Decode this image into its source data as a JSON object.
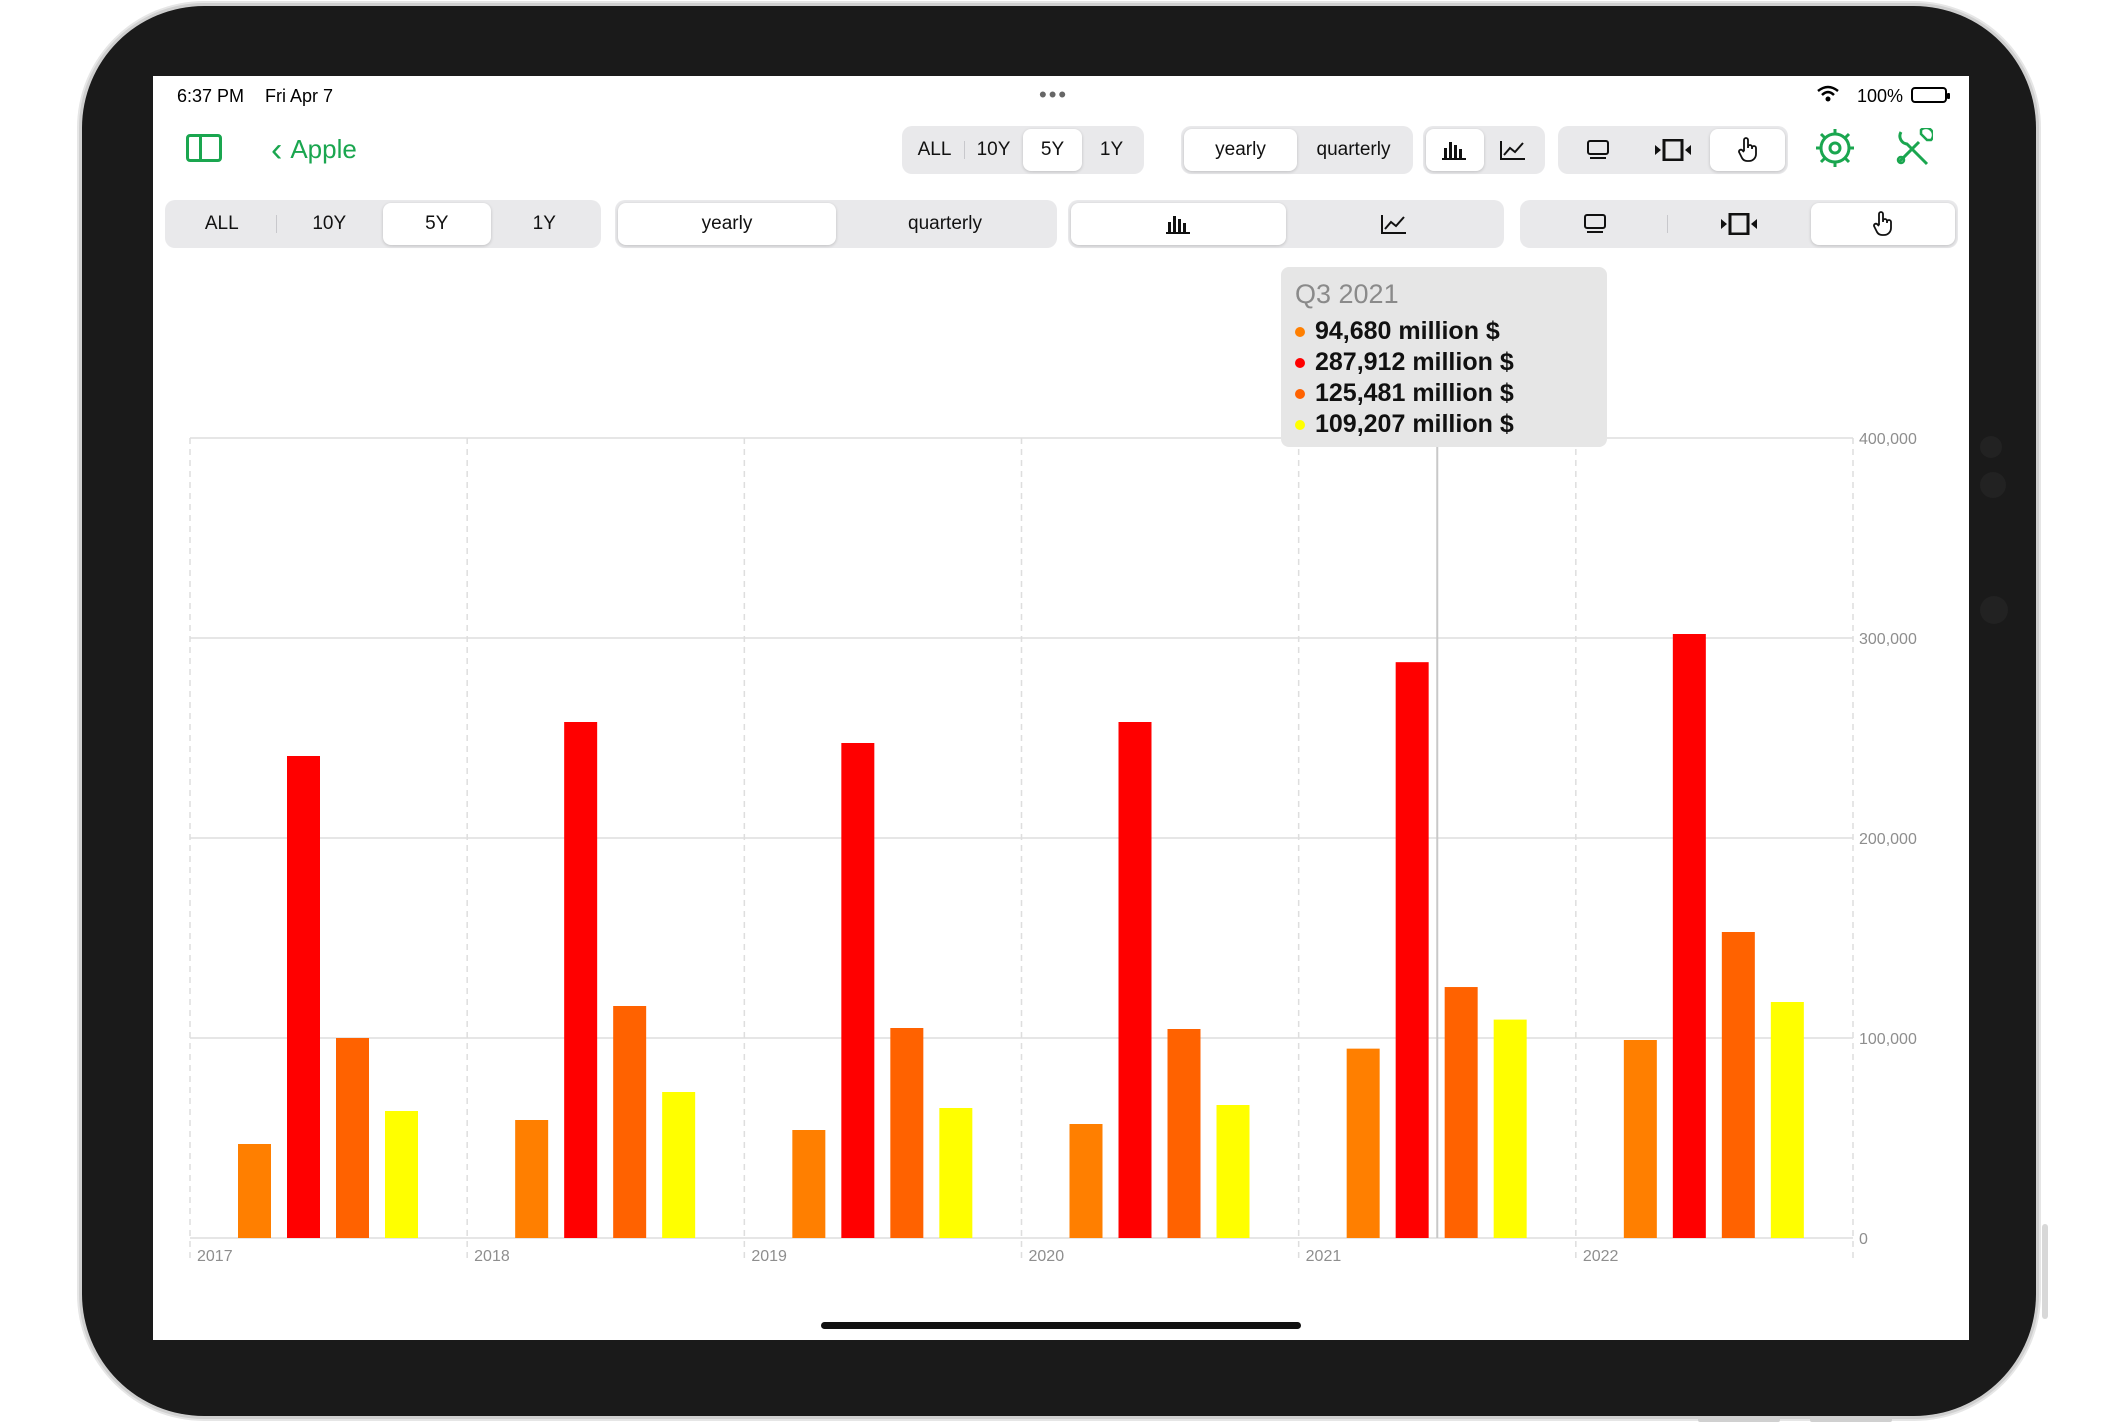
{
  "status": {
    "time": "6:37 PM",
    "date": "Fri Apr 7",
    "battery_pct": "100%"
  },
  "nav": {
    "back_label": "Apple"
  },
  "toolbar_top": {
    "ranges": [
      "ALL",
      "10Y",
      "5Y",
      "1Y"
    ],
    "range_active": "5Y",
    "periods": [
      "yearly",
      "quarterly"
    ],
    "period_active": "yearly"
  },
  "toolbar_second": {
    "ranges": [
      "ALL",
      "10Y",
      "5Y",
      "1Y"
    ],
    "periods": [
      "yearly",
      "quarterly"
    ]
  },
  "tooltip": {
    "title": "Q3 2021",
    "rows": [
      "94,680 million $",
      "287,912 million $",
      "125,481 million $",
      "109,207 million $"
    ]
  },
  "colors": {
    "accent": "#1aa64f",
    "s1": "#ff7f00",
    "s2": "#ff0000",
    "s3": "#ff6200",
    "s4": "#ffff00"
  },
  "chart_data": {
    "type": "bar",
    "categories": [
      "2017",
      "2018",
      "2019",
      "2020",
      "2021",
      "2022"
    ],
    "series": [
      {
        "values": [
          47000,
          59000,
          54000,
          57000,
          94680,
          99000
        ],
        "color": "#ff7f00"
      },
      {
        "values": [
          241000,
          258000,
          247500,
          258000,
          287912,
          302000
        ],
        "color": "#ff0000"
      },
      {
        "values": [
          100000,
          116000,
          105000,
          104500,
          125481,
          153000
        ],
        "color": "#ff6200"
      },
      {
        "values": [
          63500,
          73000,
          65000,
          66500,
          109207,
          118000
        ],
        "color": "#ffff00"
      }
    ],
    "ylim": [
      0,
      400000
    ],
    "y_ticks": [
      "0",
      "100,000",
      "200,000",
      "300,000",
      "400,000"
    ],
    "y_tick_values": [
      0,
      100000,
      200000,
      300000,
      400000
    ],
    "grid": true,
    "highlight_category": "2021"
  }
}
